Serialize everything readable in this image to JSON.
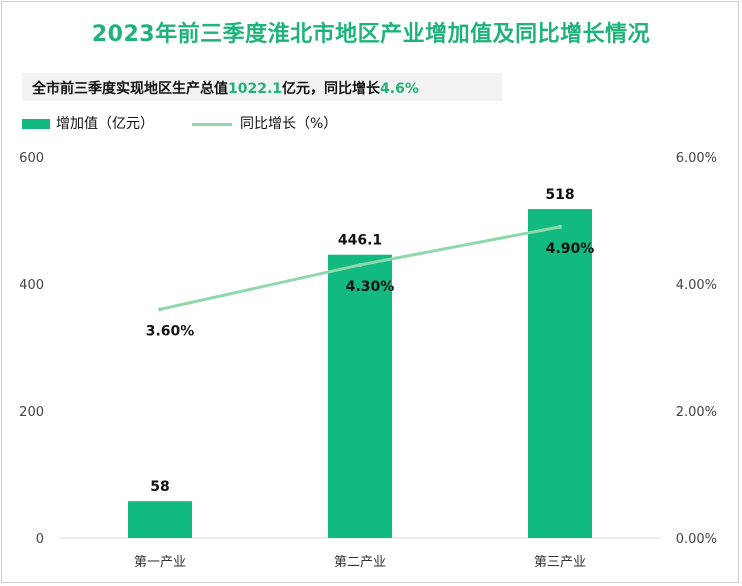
{
  "title": "2023年前三季度淮北市地区产业增加值及同比增长情况",
  "banner": {
    "prefix": "全市前三季度实现地区生产总值",
    "value1": "1022.1",
    "middle": "亿元，同比增长",
    "value2": "4.6%"
  },
  "colors": {
    "bar": "#12b981",
    "line": "#8ed8ac",
    "title": "#1fb37a"
  },
  "chart_data": {
    "type": "bar",
    "categories": [
      "第一产业",
      "第二产业",
      "第三产业"
    ],
    "series": [
      {
        "name": "增加值（亿元）",
        "type": "bar",
        "axis": "left",
        "values": [
          58,
          446.1,
          518
        ],
        "labels": [
          "58",
          "446.1",
          "518"
        ]
      },
      {
        "name": "同比增长（%）",
        "type": "line",
        "axis": "right",
        "values": [
          3.6,
          4.3,
          4.9
        ],
        "labels": [
          "3.60%",
          "4.30%",
          "4.90%"
        ]
      }
    ],
    "y_left": {
      "ylim": [
        0,
        600
      ],
      "ticks": [
        0,
        200,
        400,
        600
      ],
      "tick_labels": [
        "0",
        "200",
        "400",
        "600"
      ]
    },
    "y_right": {
      "ylim": [
        0,
        6
      ],
      "ticks": [
        0,
        2,
        4,
        6
      ],
      "tick_labels": [
        "0.00%",
        "2.00%",
        "4.00%",
        "6.00%"
      ]
    },
    "legend_position": "top-left",
    "grid": false
  }
}
